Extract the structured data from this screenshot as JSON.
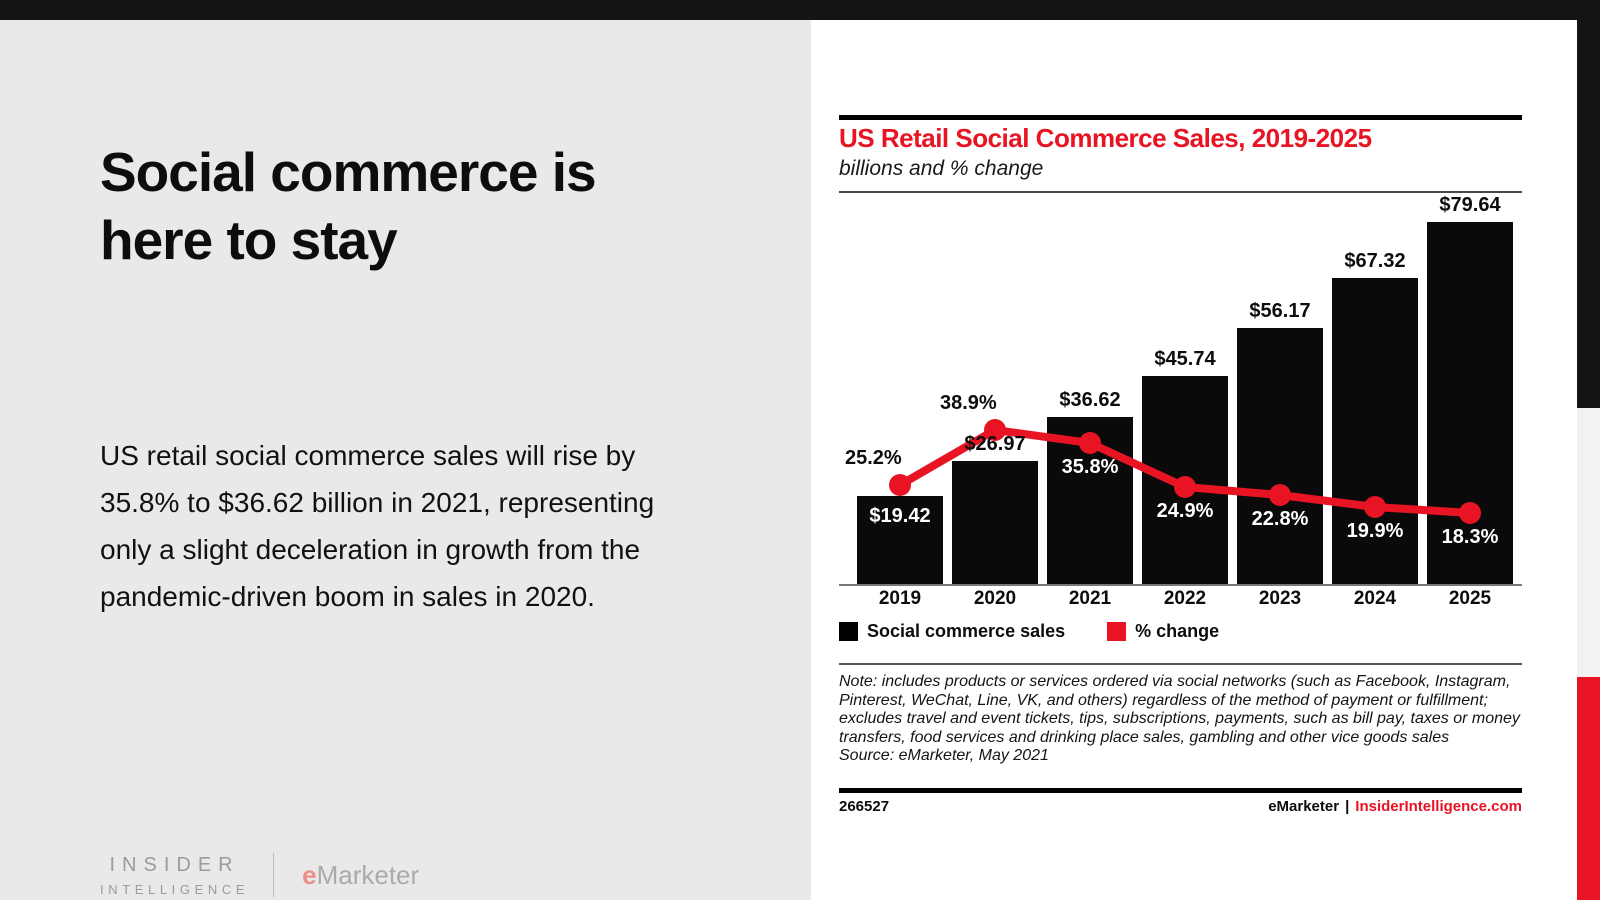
{
  "slide": {
    "title": "Social commerce is here to stay",
    "body": "US retail social commerce sales will rise by 35.8% to $36.62 billion in 2021, representing only a slight deceleration in growth from the pandemic-driven boom in sales in 2020.",
    "logo": {
      "insider_line1": "INSIDER",
      "insider_line2": "INTELLIGENCE",
      "emarketer_e": "e",
      "emarketer_rest": "Marketer"
    }
  },
  "chart": {
    "title": "US Retail Social Commerce Sales, 2019-2025",
    "subtitle": "billions and % change",
    "legend": [
      {
        "label": "Social commerce sales",
        "color": "#000000"
      },
      {
        "label": "% change",
        "color": "#e81423"
      }
    ],
    "note": "Note: includes products or services ordered via social networks (such as Facebook, Instagram, Pinterest, WeChat, Line, VK, and others) regardless of the method of payment or fulfillment; excludes travel and event tickets, tips, subscriptions, payments, such as bill pay, taxes or money transfers, food services and drinking place sales, gambling and other vice goods sales",
    "source": "Source: eMarketer, May 2021",
    "chart_id": "266527",
    "footer_brand": "eMarketer",
    "footer_sep": "|",
    "footer_site": "InsiderIntelligence.com"
  },
  "chart_data": {
    "type": "bar",
    "subtype": "bar+line-combo",
    "title": "US Retail Social Commerce Sales, 2019-2025",
    "xlabel": "",
    "ylabel": "billions and % change",
    "categories": [
      "2019",
      "2020",
      "2021",
      "2022",
      "2023",
      "2024",
      "2025"
    ],
    "series": [
      {
        "name": "Social commerce sales",
        "type": "bar",
        "unit": "USD billions",
        "values": [
          19.42,
          26.97,
          36.62,
          45.74,
          56.17,
          67.32,
          79.64
        ],
        "labels": [
          "$19.42",
          "$26.97",
          "$36.62",
          "$45.74",
          "$56.17",
          "$67.32",
          "$79.64"
        ],
        "color": "#000000"
      },
      {
        "name": "% change",
        "type": "line",
        "unit": "percent",
        "values": [
          25.2,
          38.9,
          35.8,
          24.9,
          22.8,
          19.9,
          18.3
        ],
        "labels": [
          "25.2%",
          "38.9%",
          "35.8%",
          "24.9%",
          "22.8%",
          "19.9%",
          "18.3%"
        ],
        "color": "#e81423"
      }
    ],
    "label_layout": {
      "sales_label_pos": [
        "inside",
        "above",
        "above",
        "above",
        "above",
        "above",
        "above"
      ],
      "pct_label_pos": [
        "above",
        "above",
        "inside",
        "inside",
        "inside",
        "inside",
        "inside"
      ]
    },
    "legend_position": "bottom",
    "grid": false
  }
}
